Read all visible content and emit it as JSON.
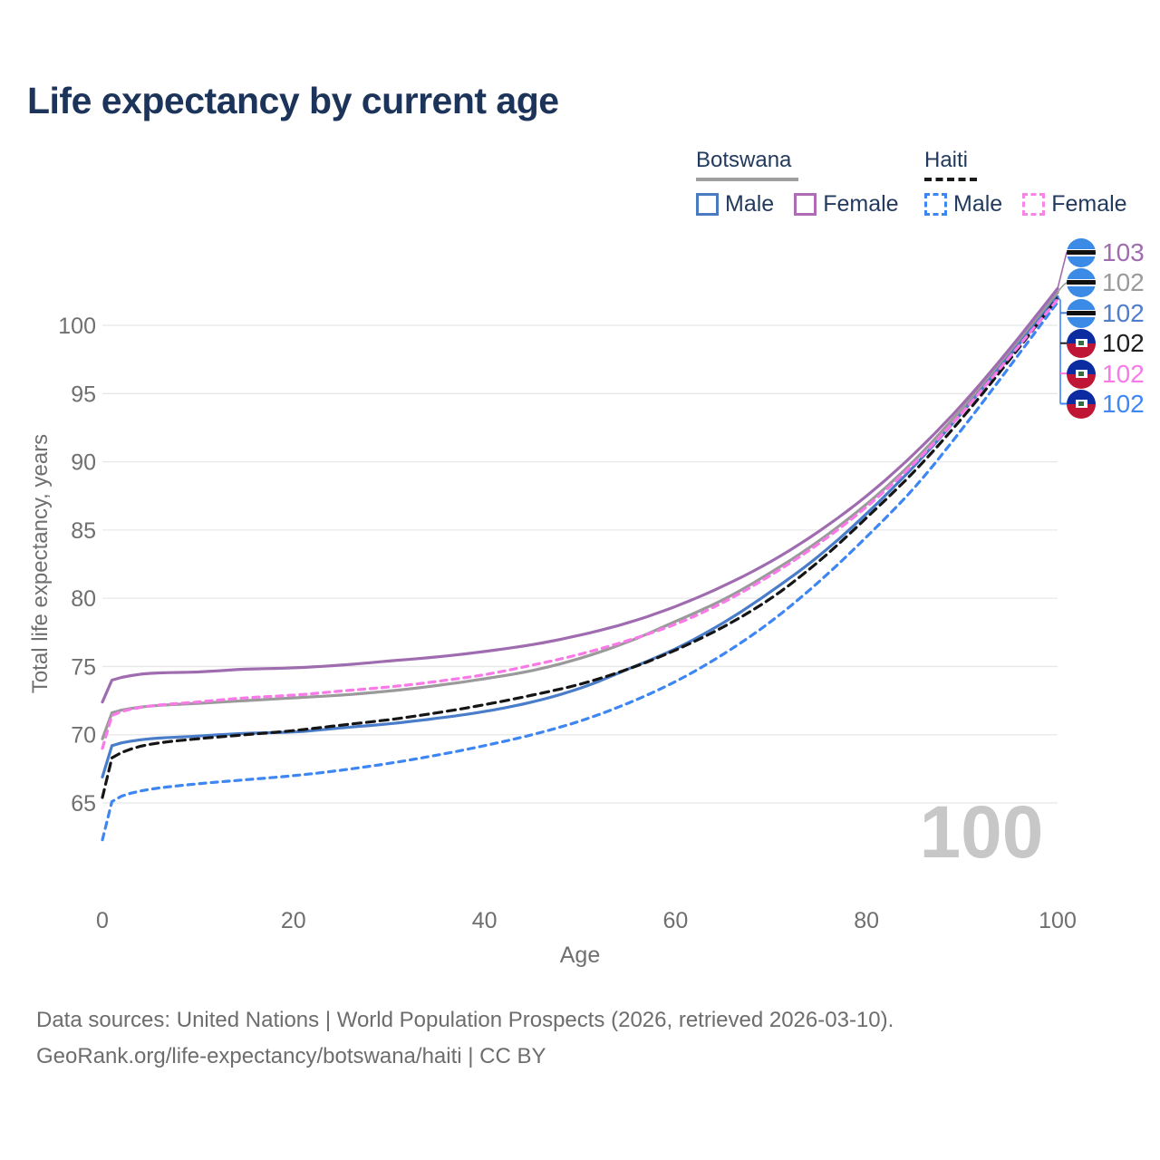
{
  "title": "Life expectancy by current age",
  "legend": {
    "botswana": {
      "label": "Botswana",
      "line_color": "#9e9e9e",
      "male_label": "Male",
      "male_color": "#4a7abf",
      "female_label": "Female",
      "female_color": "#ad6cb3"
    },
    "haiti": {
      "label": "Haiti",
      "line_color": "#1a1a1a",
      "male_label": "Male",
      "male_color": "#3b86f0",
      "female_label": "Female",
      "female_color": "#f884e8"
    }
  },
  "axes": {
    "y_title": "Total life expectancy, years",
    "x_title": "Age"
  },
  "watermark": "100",
  "end_labels": [
    {
      "country": "botswana",
      "value": "103",
      "color": "#a06cb0",
      "series": "Botswana Female"
    },
    {
      "country": "botswana",
      "value": "102",
      "color": "#9a9a9a",
      "series": "Botswana"
    },
    {
      "country": "botswana",
      "value": "102",
      "color": "#4f7fca",
      "series": "Botswana Male"
    },
    {
      "country": "haiti",
      "value": "102",
      "color": "#1f1f1f",
      "series": "Haiti"
    },
    {
      "country": "haiti",
      "value": "102",
      "color": "#f879e7",
      "series": "Haiti Female"
    },
    {
      "country": "haiti",
      "value": "102",
      "color": "#3f87f5",
      "series": "Haiti Male"
    }
  ],
  "footer": {
    "line1": "Data sources: United Nations | World Population Prospects (2026, retrieved 2026-03-10).",
    "line2": "GeoRank.org/life-expectancy/botswana/haiti | CC BY"
  },
  "chart_data": {
    "type": "line",
    "title": "Life expectancy by current age",
    "xlabel": "Age",
    "ylabel": "Total life expectancy, years",
    "xlim": [
      0,
      100
    ],
    "ylim": [
      62,
      103.5
    ],
    "xticks": [
      0,
      20,
      40,
      60,
      80,
      100
    ],
    "yticks": [
      65,
      70,
      75,
      80,
      85,
      90,
      95,
      100
    ],
    "grid": "horizontal",
    "legend_position": "top-right",
    "ages": [
      0,
      1,
      2,
      5,
      10,
      15,
      20,
      25,
      30,
      35,
      40,
      45,
      50,
      55,
      60,
      65,
      70,
      75,
      80,
      85,
      90,
      95,
      100
    ],
    "series": [
      {
        "name": "Botswana",
        "country": "Botswana",
        "sex": "Both",
        "color": "#9a9a9a",
        "dash": null,
        "end_label": "102",
        "values": [
          69.7,
          71.6,
          71.8,
          72.1,
          72.3,
          72.5,
          72.7,
          72.9,
          73.2,
          73.6,
          74.1,
          74.7,
          75.6,
          76.8,
          78.3,
          79.9,
          81.9,
          84.2,
          86.9,
          90.1,
          93.9,
          98.0,
          102.4
        ]
      },
      {
        "name": "Botswana Female",
        "country": "Botswana",
        "sex": "Female",
        "color": "#a06cb0",
        "dash": null,
        "end_label": "103",
        "values": [
          72.4,
          74.0,
          74.2,
          74.5,
          74.6,
          74.8,
          74.9,
          75.1,
          75.4,
          75.7,
          76.1,
          76.6,
          77.3,
          78.2,
          79.4,
          80.9,
          82.7,
          84.9,
          87.5,
          90.6,
          94.2,
          98.3,
          102.7
        ]
      },
      {
        "name": "Botswana Male",
        "country": "Botswana",
        "sex": "Male",
        "color": "#4a7dc9",
        "dash": null,
        "end_label": "102",
        "values": [
          66.9,
          69.2,
          69.4,
          69.7,
          69.9,
          70.1,
          70.2,
          70.5,
          70.8,
          71.2,
          71.7,
          72.4,
          73.4,
          74.8,
          76.3,
          78.2,
          80.5,
          83.1,
          86.2,
          89.7,
          93.6,
          97.8,
          102.1
        ]
      },
      {
        "name": "Haiti Male",
        "country": "Haiti",
        "sex": "Male",
        "color": "#3e86f2",
        "dash": "7 6",
        "end_label": "102",
        "values": [
          62.3,
          65.1,
          65.5,
          66.0,
          66.4,
          66.7,
          67.0,
          67.4,
          67.9,
          68.5,
          69.2,
          70.0,
          71.0,
          72.3,
          73.9,
          75.9,
          78.3,
          81.2,
          84.5,
          88.1,
          92.4,
          97.0,
          101.7
        ]
      },
      {
        "name": "Haiti",
        "country": "Haiti",
        "sex": "Both",
        "color": "#151515",
        "dash": "9 6",
        "end_label": "102",
        "values": [
          65.4,
          68.3,
          68.7,
          69.3,
          69.7,
          70.0,
          70.3,
          70.7,
          71.1,
          71.6,
          72.2,
          72.9,
          73.7,
          74.8,
          76.2,
          77.9,
          80.0,
          82.7,
          85.9,
          89.3,
          93.2,
          97.5,
          102.0
        ]
      },
      {
        "name": "Haiti Female",
        "country": "Haiti",
        "sex": "Female",
        "color": "#f879e7",
        "dash": "7 6",
        "end_label": "102",
        "values": [
          69.0,
          71.4,
          71.7,
          72.1,
          72.4,
          72.7,
          72.9,
          73.2,
          73.5,
          73.9,
          74.4,
          75.1,
          75.9,
          76.9,
          78.1,
          79.7,
          81.7,
          84.0,
          86.7,
          89.9,
          93.6,
          97.7,
          101.9
        ]
      }
    ]
  }
}
